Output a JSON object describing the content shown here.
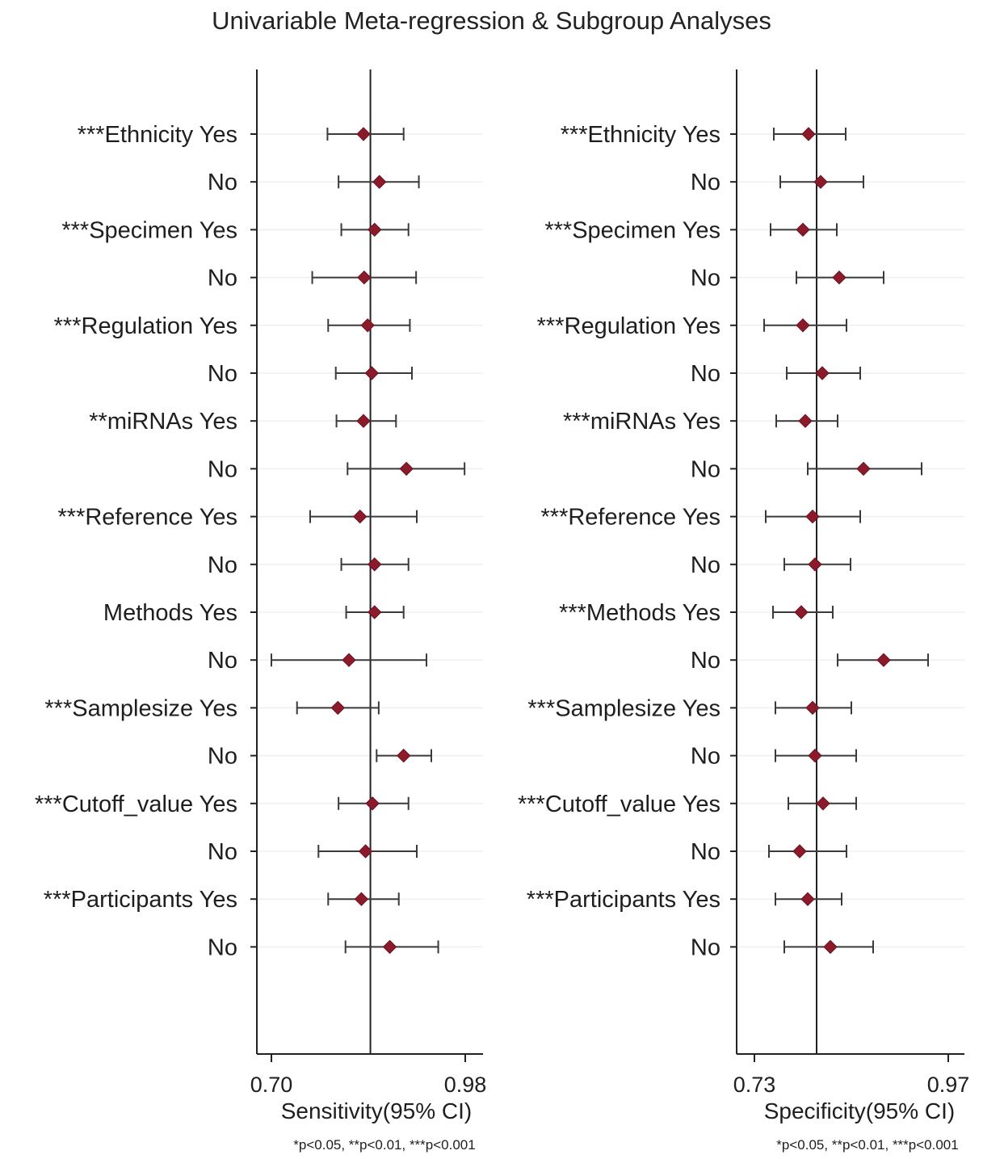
{
  "title": "Univariable Meta-regression & Subgroup Analyses",
  "chart_data": [
    {
      "type": "forest",
      "xlabel": "Sensitivity(95% CI)",
      "xticks": [
        "0.70",
        "0.98"
      ],
      "xlim": [
        0.7,
        0.98
      ],
      "reference_line": 0.843,
      "footnote": "*p<0.05, **p<0.01, ***p<0.001",
      "rows": [
        {
          "label": "***Ethnicity Yes",
          "est": 0.833,
          "lo": 0.781,
          "hi": 0.891
        },
        {
          "label": "No",
          "est": 0.856,
          "lo": 0.797,
          "hi": 0.913
        },
        {
          "label": "***Specimen Yes",
          "est": 0.849,
          "lo": 0.801,
          "hi": 0.898
        },
        {
          "label": "No",
          "est": 0.834,
          "lo": 0.759,
          "hi": 0.909
        },
        {
          "label": "***Regulation Yes",
          "est": 0.839,
          "lo": 0.782,
          "hi": 0.9
        },
        {
          "label": "No",
          "est": 0.845,
          "lo": 0.793,
          "hi": 0.903
        },
        {
          "label": "**miRNAs Yes",
          "est": 0.833,
          "lo": 0.794,
          "hi": 0.88
        },
        {
          "label": "No",
          "est": 0.895,
          "lo": 0.81,
          "hi": 0.979
        },
        {
          "label": "***Reference Yes",
          "est": 0.828,
          "lo": 0.756,
          "hi": 0.91
        },
        {
          "label": "No",
          "est": 0.849,
          "lo": 0.801,
          "hi": 0.898
        },
        {
          "label": "Methods Yes",
          "est": 0.849,
          "lo": 0.808,
          "hi": 0.891
        },
        {
          "label": "No",
          "est": 0.812,
          "lo": 0.7,
          "hi": 0.924
        },
        {
          "label": "***Samplesize Yes",
          "est": 0.796,
          "lo": 0.737,
          "hi": 0.855
        },
        {
          "label": "No",
          "est": 0.891,
          "lo": 0.852,
          "hi": 0.931
        },
        {
          "label": "***Cutoff_value Yes",
          "est": 0.846,
          "lo": 0.797,
          "hi": 0.898
        },
        {
          "label": "No",
          "est": 0.836,
          "lo": 0.768,
          "hi": 0.91
        },
        {
          "label": "***Participants Yes",
          "est": 0.83,
          "lo": 0.782,
          "hi": 0.884
        },
        {
          "label": "No",
          "est": 0.871,
          "lo": 0.807,
          "hi": 0.941
        }
      ]
    },
    {
      "type": "forest",
      "xlabel": "Specificity(95% CI)",
      "xticks": [
        "0.73",
        "0.97"
      ],
      "xlim": [
        0.73,
        0.97
      ],
      "reference_line": 0.807,
      "footnote": "*p<0.05, **p<0.01, ***p<0.001",
      "rows": [
        {
          "label": "***Ethnicity Yes",
          "est": 0.797,
          "lo": 0.754,
          "hi": 0.843
        },
        {
          "label": "No",
          "est": 0.812,
          "lo": 0.762,
          "hi": 0.865
        },
        {
          "label": "***Specimen Yes",
          "est": 0.79,
          "lo": 0.75,
          "hi": 0.832
        },
        {
          "label": "No",
          "est": 0.835,
          "lo": 0.782,
          "hi": 0.89
        },
        {
          "label": "***Regulation Yes",
          "est": 0.79,
          "lo": 0.742,
          "hi": 0.844
        },
        {
          "label": "No",
          "est": 0.814,
          "lo": 0.77,
          "hi": 0.861
        },
        {
          "label": "***miRNAs Yes",
          "est": 0.793,
          "lo": 0.757,
          "hi": 0.833
        },
        {
          "label": "No",
          "est": 0.865,
          "lo": 0.796,
          "hi": 0.937
        },
        {
          "label": "***Reference Yes",
          "est": 0.802,
          "lo": 0.744,
          "hi": 0.861
        },
        {
          "label": "No",
          "est": 0.805,
          "lo": 0.767,
          "hi": 0.849
        },
        {
          "label": "***Methods Yes",
          "est": 0.788,
          "lo": 0.753,
          "hi": 0.827
        },
        {
          "label": "No",
          "est": 0.89,
          "lo": 0.833,
          "hi": 0.945
        },
        {
          "label": "***Samplesize Yes",
          "est": 0.802,
          "lo": 0.756,
          "hi": 0.85
        },
        {
          "label": "No",
          "est": 0.805,
          "lo": 0.756,
          "hi": 0.856
        },
        {
          "label": "***Cutoff_value Yes",
          "est": 0.815,
          "lo": 0.772,
          "hi": 0.856
        },
        {
          "label": "No",
          "est": 0.786,
          "lo": 0.748,
          "hi": 0.844
        },
        {
          "label": "***Participants Yes",
          "est": 0.796,
          "lo": 0.756,
          "hi": 0.838
        },
        {
          "label": "No",
          "est": 0.824,
          "lo": 0.767,
          "hi": 0.877
        }
      ]
    }
  ]
}
